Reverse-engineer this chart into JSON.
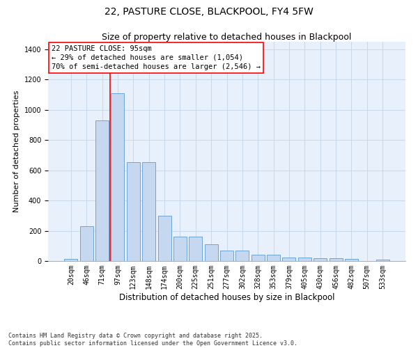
{
  "title": "22, PASTURE CLOSE, BLACKPOOL, FY4 5FW",
  "subtitle": "Size of property relative to detached houses in Blackpool",
  "xlabel": "Distribution of detached houses by size in Blackpool",
  "ylabel": "Number of detached properties",
  "categories": [
    "20sqm",
    "46sqm",
    "71sqm",
    "97sqm",
    "123sqm",
    "148sqm",
    "174sqm",
    "200sqm",
    "225sqm",
    "251sqm",
    "277sqm",
    "302sqm",
    "328sqm",
    "353sqm",
    "379sqm",
    "405sqm",
    "430sqm",
    "456sqm",
    "482sqm",
    "507sqm",
    "533sqm"
  ],
  "values": [
    15,
    230,
    930,
    1110,
    655,
    655,
    300,
    160,
    160,
    110,
    70,
    70,
    40,
    40,
    25,
    25,
    20,
    20,
    15,
    0,
    10
  ],
  "bar_color": "#C5D8F0",
  "bar_edge_color": "#5B9BD5",
  "vline_x": 2.5,
  "vline_color": "red",
  "annotation_text_line1": "22 PASTURE CLOSE: 95sqm",
  "annotation_text_line2": "← 29% of detached houses are smaller (1,054)",
  "annotation_text_line3": "70% of semi-detached houses are larger (2,546) →",
  "ylim": [
    0,
    1450
  ],
  "footnote": "Contains HM Land Registry data © Crown copyright and database right 2025.\nContains public sector information licensed under the Open Government Licence v3.0.",
  "bg_color": "#E8F0FB",
  "grid_color": "#C8D8E8",
  "title_fontsize": 10,
  "subtitle_fontsize": 9,
  "ylabel_fontsize": 8,
  "xlabel_fontsize": 8.5,
  "tick_fontsize": 7,
  "annotation_fontsize": 7.5,
  "footnote_fontsize": 6
}
